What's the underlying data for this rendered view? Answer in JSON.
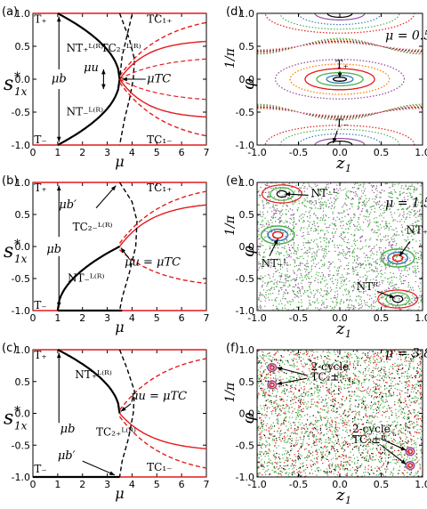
{
  "chart_data": [
    {
      "type": "line",
      "panel": "(a)",
      "ylabel": "s*_1x",
      "xlabel": "μ",
      "xlim": [
        0,
        7
      ],
      "ylim": [
        -1.0,
        1.0
      ],
      "x_ticks": [
        "0",
        "1",
        "2",
        "3",
        "4",
        "5",
        "6",
        "7"
      ],
      "y_ticks": [
        "-1.0",
        "-0.5",
        "0.0",
        "0.5",
        "1.0"
      ],
      "annotations": [
        "T+",
        "T−",
        "NT+L(R)",
        "NT−L(R)",
        "TC2−L(R)",
        "TC1+",
        "TC1−",
        "μb",
        "μu",
        "μTC"
      ],
      "colors": {
        "stable": "#e41a1c",
        "unstable": "#000000"
      }
    },
    {
      "type": "scatter",
      "panel": "(d)",
      "xlabel": "z1",
      "ylabel": "φ1/π",
      "xlim": [
        -1.0,
        1.0
      ],
      "ylim": [
        -1.0,
        1.0
      ],
      "x_ticks": [
        "-1.0",
        "-0.5",
        "0.0",
        "0.5",
        "1.0"
      ],
      "y_ticks": [
        "-1.0",
        "-0.5",
        "0.0",
        "0.5",
        "1.0"
      ],
      "title": "μ = 0.5",
      "annotations": [
        "T+",
        "T−"
      ]
    },
    {
      "type": "line",
      "panel": "(b)",
      "ylabel": "s*_1x",
      "xlabel": "μ",
      "xlim": [
        0,
        7
      ],
      "ylim": [
        -1.0,
        1.0
      ],
      "x_ticks": [
        "0",
        "1",
        "2",
        "3",
        "4",
        "5",
        "6",
        "7"
      ],
      "y_ticks": [
        "-1.0",
        "-0.5",
        "0.0",
        "0.5",
        "1.0"
      ],
      "annotations": [
        "T+",
        "T−",
        "μb'",
        "TC2−L(R)",
        "TC1+",
        "μb",
        "NT−L(R)",
        "μu = μTC"
      ]
    },
    {
      "type": "scatter",
      "panel": "(e)",
      "xlabel": "z1",
      "ylabel": "φ1/π",
      "xlim": [
        -1.0,
        1.0
      ],
      "ylim": [
        -1.0,
        1.0
      ],
      "x_ticks": [
        "-1.0",
        "-0.5",
        "0.0",
        "0.5",
        "1.0"
      ],
      "y_ticks": [
        "-1.0",
        "-0.5",
        "0.0",
        "0.5",
        "1.0"
      ],
      "title": "μ = 1.5",
      "annotations": [
        "NT−L",
        "NT+R",
        "NT+L",
        "NT−R"
      ]
    },
    {
      "type": "line",
      "panel": "(c)",
      "ylabel": "s*_1x",
      "xlabel": "μ",
      "xlim": [
        0,
        7
      ],
      "ylim": [
        -1.0,
        1.0
      ],
      "x_ticks": [
        "0",
        "1",
        "2",
        "3",
        "4",
        "5",
        "6",
        "7"
      ],
      "y_ticks": [
        "-1.0",
        "-0.5",
        "0.0",
        "0.5",
        "1.0"
      ],
      "annotations": [
        "T+",
        "T−",
        "NT+L(R)",
        "μu = μTC",
        "μb",
        "TC2+L(R)",
        "μb'",
        "TC1−"
      ]
    },
    {
      "type": "scatter",
      "panel": "(f)",
      "xlabel": "z1",
      "ylabel": "φ1/π",
      "xlim": [
        -1.0,
        1.0
      ],
      "ylim": [
        -1.0,
        1.0
      ],
      "x_ticks": [
        "-1.0",
        "-0.5",
        "0.0",
        "0.5",
        "1.0"
      ],
      "y_ticks": [
        "-1.0",
        "-0.5",
        "0.0",
        "0.5",
        "1.0"
      ],
      "title": "μ = 3.8",
      "annotations": [
        "2-cycle TC2±L",
        "2-cycle TC2±R"
      ]
    }
  ]
}
